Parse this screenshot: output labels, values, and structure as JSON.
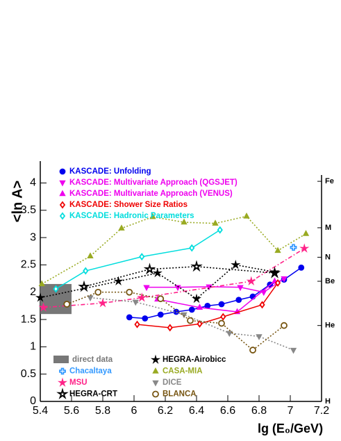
{
  "chart_data": {
    "type": "scatter",
    "xlabel": "lg (E₀/GeV)",
    "ylabel": "<ln A>",
    "xlim": [
      5.4,
      7.2
    ],
    "ylim": [
      0,
      4.4
    ],
    "xticks": [
      5.4,
      5.6,
      5.8,
      6,
      6.2,
      6.4,
      6.6,
      6.8,
      7,
      7.2
    ],
    "yticks": [
      0,
      0.5,
      1,
      1.5,
      2,
      2.5,
      3,
      3.5,
      4
    ],
    "y2lim": [
      0,
      4.4
    ],
    "y2ticks": [
      {
        "value": 4.03,
        "label": "Fe"
      },
      {
        "value": 3.18,
        "label": "M"
      },
      {
        "value": 2.64,
        "label": "N"
      },
      {
        "value": 2.2,
        "label": "Be"
      },
      {
        "value": 1.39,
        "label": "He"
      },
      {
        "value": 0,
        "label": "H"
      }
    ],
    "boxes": [
      {
        "name": "direct data",
        "color": "#777777",
        "x": [
          5.4,
          5.6
        ],
        "y": [
          1.6,
          2.15
        ]
      }
    ],
    "series": [
      {
        "name": "KASCADE: Unfolding",
        "color": "#0000ee",
        "marker": "circle",
        "filled": true,
        "line": "solid",
        "x": [
          5.97,
          6.07,
          6.17,
          6.27,
          6.37,
          6.47,
          6.56,
          6.67,
          6.76,
          6.87,
          6.96,
          7.07
        ],
        "values": [
          1.54,
          1.52,
          1.59,
          1.64,
          1.68,
          1.75,
          1.78,
          1.86,
          1.92,
          2.14,
          2.23,
          2.45
        ]
      },
      {
        "name": "KASCADE: Multivariate Approach (QGSJET)",
        "color": "#ee00ee",
        "marker": "tridown",
        "filled": true,
        "line": "solid",
        "x": [
          6.08,
          6.28,
          6.48,
          6.68,
          6.83,
          6.96
        ],
        "values": [
          2.09,
          2.09,
          2.1,
          2.09,
          2.0,
          2.25
        ]
      },
      {
        "name": "KASCADE: Multivariate Approach (VENUS)",
        "color": "#ee00ee",
        "marker": "triup",
        "filled": true,
        "line": "solid",
        "x": [
          6.15,
          6.42,
          6.66,
          6.9
        ],
        "values": [
          1.87,
          1.72,
          1.64,
          2.2
        ]
      },
      {
        "name": "KASCADE: Shower Size Ratios",
        "color": "#ee0000",
        "marker": "diamond",
        "filled": false,
        "line": "solid",
        "x": [
          6.02,
          6.23,
          6.42,
          6.57,
          6.82,
          6.92
        ],
        "values": [
          1.41,
          1.35,
          1.42,
          1.55,
          1.77,
          2.17
        ]
      },
      {
        "name": "KASCADE: Hadronic Parameters",
        "color": "#00dddd",
        "marker": "diamond",
        "filled": false,
        "line": "solid",
        "x": [
          5.5,
          5.69,
          6.05,
          6.37,
          6.55
        ],
        "values": [
          2.06,
          2.39,
          2.65,
          2.81,
          3.14
        ]
      },
      {
        "name": "Chacaltaya",
        "color": "#3399ff",
        "marker": "cross",
        "filled": false,
        "line": "none",
        "x": [
          7.02
        ],
        "values": [
          2.82
        ]
      },
      {
        "name": "MSU",
        "color": "#ff2288",
        "marker": "star",
        "filled": true,
        "line": "dashdot",
        "x": [
          5.42,
          5.8,
          6.05,
          6.75,
          7.09
        ],
        "values": [
          1.72,
          1.8,
          1.9,
          2.2,
          2.8
        ]
      },
      {
        "name": "HEGRA-CRT",
        "color": "#000000",
        "marker": "star",
        "filled": false,
        "line": "dotted",
        "x": [
          5.68,
          6.1,
          6.4,
          6.9
        ],
        "values": [
          2.1,
          2.42,
          2.47,
          2.35
        ]
      },
      {
        "name": "HEGRA-Airobicc",
        "color": "#000000",
        "marker": "star",
        "filled": true,
        "line": "dotted",
        "x": [
          5.4,
          5.9,
          6.15,
          6.4,
          6.65,
          6.9
        ],
        "values": [
          1.9,
          2.2,
          2.35,
          1.88,
          2.5,
          2.37
        ]
      },
      {
        "name": "CASA-MIA",
        "color": "#99aa22",
        "marker": "triup",
        "filled": true,
        "line": "dotted",
        "x": [
          5.41,
          5.72,
          5.92,
          6.12,
          6.32,
          6.52,
          6.72,
          6.92,
          7.1
        ],
        "values": [
          2.15,
          2.66,
          3.17,
          3.38,
          3.28,
          3.26,
          3.39,
          2.76,
          3.07
        ]
      },
      {
        "name": "DICE",
        "color": "#888888",
        "marker": "tridown",
        "filled": true,
        "line": "dotted",
        "x": [
          5.72,
          6.01,
          6.32,
          6.61,
          6.8,
          7.02
        ],
        "values": [
          1.9,
          1.82,
          1.59,
          1.25,
          1.19,
          0.94
        ]
      },
      {
        "name": "BLANCA",
        "color": "#775511",
        "marker": "circle",
        "filled": false,
        "line": "dotted",
        "x": [
          5.57,
          5.77,
          5.97,
          6.17,
          6.36,
          6.56,
          6.76,
          6.96
        ],
        "values": [
          1.78,
          2.0,
          2.0,
          1.88,
          1.48,
          1.43,
          0.94,
          1.39
        ]
      }
    ]
  }
}
